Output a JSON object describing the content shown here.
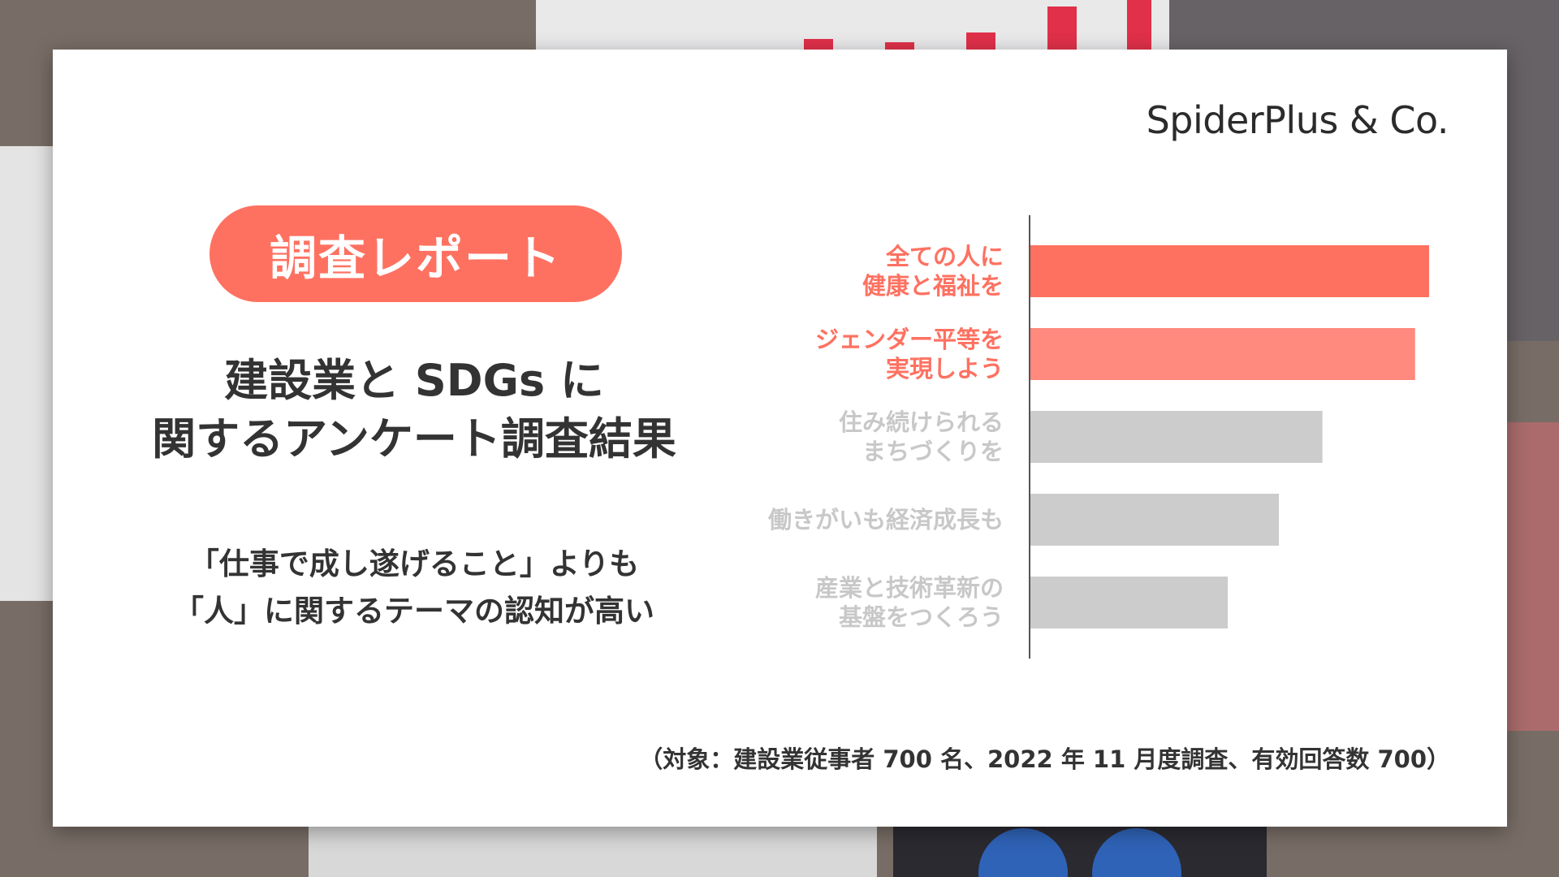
{
  "brand": {
    "name": "SpiderPlus & Co."
  },
  "badge": {
    "label": "調査レポート"
  },
  "title": {
    "line1": "建設業と SDGs に",
    "line2": "関するアンケート調査結果"
  },
  "subtitle": {
    "line1": "「仕事で成し遂げること」よりも",
    "line2": "「人」に関するテーマの認知が高い"
  },
  "footnote": "（対象：建設業従事者 700 名、2022 年 11 月度調査、有効回答数 700）",
  "colors": {
    "accent": "#fe7161",
    "accent_light": "#ff8a7d",
    "muted_bar": "#cccccc",
    "muted_label": "#c8c8c8",
    "axis": "#555555"
  },
  "chart_data": {
    "type": "bar",
    "orientation": "horizontal",
    "categories": [
      [
        "全ての人に",
        "健康と福祉を"
      ],
      [
        "ジェンダー平等を",
        "実現しよう"
      ],
      [
        "住み続けられる",
        "まちづくりを"
      ],
      [
        "働きがいも経済成長も"
      ],
      [
        "産業と技術革新の",
        "基盤をつくろう"
      ]
    ],
    "values": [
      100,
      96.5,
      73.3,
      62.4,
      49.6
    ],
    "highlight": [
      true,
      true,
      false,
      false,
      false
    ],
    "title": "",
    "xlabel": "",
    "ylabel": "",
    "xlim": [
      0,
      100
    ],
    "grid": false,
    "legend": "none"
  }
}
